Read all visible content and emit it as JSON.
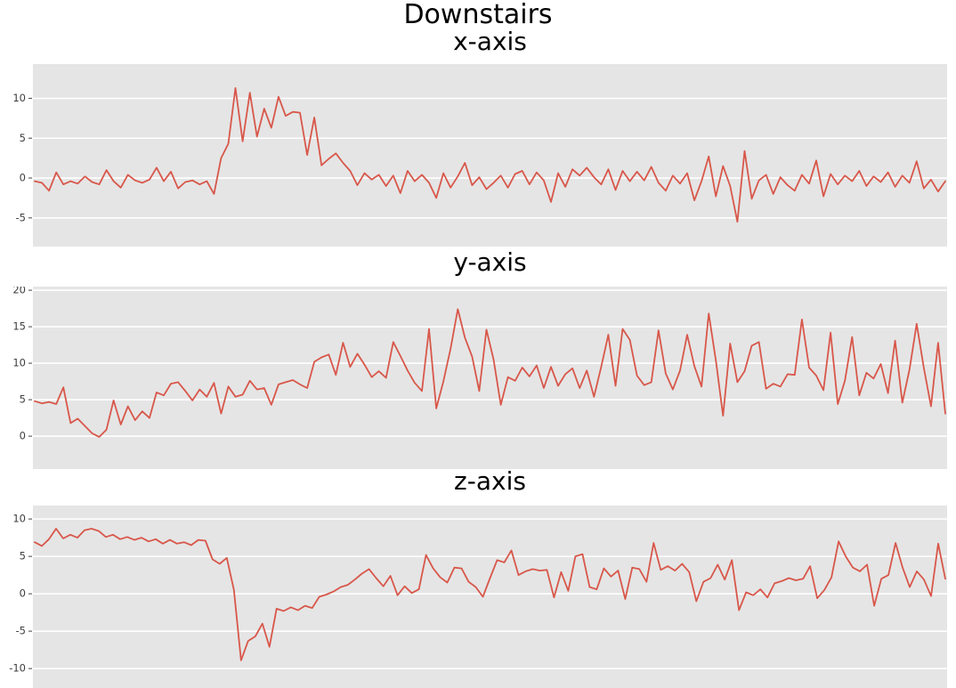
{
  "figure": {
    "title": "Downstairs",
    "background": "#ffffff"
  },
  "style": {
    "axes_background": "#e5e5e5",
    "grid_color": "#ffffff",
    "line_color": "#d8574a",
    "tick_mark_color": "#555555",
    "tick_label_color": "#3d3d3d",
    "title_color": "#000000"
  },
  "chart_data": [
    {
      "type": "line",
      "title": "x-axis",
      "xlabel": "",
      "ylabel": "",
      "legend": null,
      "grid": "horizontal",
      "xticks": [],
      "yticks": [
        10,
        5,
        0,
        -5
      ],
      "ylim": [
        -8.6,
        14.3
      ],
      "values": [
        -0.4,
        -0.6,
        -1.6,
        0.7,
        -0.8,
        -0.4,
        -0.7,
        0.2,
        -0.5,
        -0.8,
        1.0,
        -0.4,
        -1.2,
        0.4,
        -0.3,
        -0.6,
        -0.2,
        1.3,
        -0.4,
        0.8,
        -1.3,
        -0.5,
        -0.3,
        -0.8,
        -0.4,
        -2.0,
        2.5,
        4.3,
        11.3,
        4.6,
        10.7,
        5.2,
        8.7,
        6.3,
        10.2,
        7.8,
        8.3,
        8.2,
        2.9,
        7.6,
        1.6,
        2.4,
        3.1,
        1.9,
        0.9,
        -0.9,
        0.6,
        -0.2,
        0.4,
        -1.0,
        0.3,
        -1.9,
        0.9,
        -0.4,
        0.4,
        -0.6,
        -2.5,
        0.6,
        -1.2,
        0.2,
        1.9,
        -0.9,
        0.1,
        -1.4,
        -0.6,
        0.3,
        -1.2,
        0.5,
        0.9,
        -0.8,
        0.7,
        -0.3,
        -3.0,
        0.6,
        -1.1,
        1.1,
        0.3,
        1.3,
        0.1,
        -0.8,
        1.1,
        -1.5,
        0.9,
        -0.4,
        0.8,
        -0.3,
        1.4,
        -0.6,
        -1.6,
        0.3,
        -0.7,
        0.6,
        -2.8,
        -0.4,
        2.7,
        -2.3,
        1.5,
        -1.0,
        -5.5,
        3.4,
        -2.6,
        -0.3,
        0.4,
        -2.0,
        0.1,
        -0.9,
        -1.6,
        0.4,
        -0.7,
        2.2,
        -2.3,
        0.5,
        -0.8,
        0.3,
        -0.4,
        0.9,
        -1.0,
        0.2,
        -0.5,
        0.7,
        -1.1,
        0.3,
        -0.6,
        2.1,
        -1.3,
        -0.2,
        -1.7,
        -0.4
      ]
    },
    {
      "type": "line",
      "title": "y-axis",
      "xlabel": "",
      "ylabel": "",
      "legend": null,
      "grid": "horizontal",
      "xticks": [],
      "yticks": [
        20,
        15,
        10,
        5,
        0
      ],
      "ylim": [
        -4.5,
        20.5
      ],
      "values": [
        4.8,
        4.5,
        4.7,
        4.4,
        6.7,
        1.8,
        2.4,
        1.4,
        0.4,
        -0.1,
        0.9,
        4.9,
        1.6,
        4.1,
        2.2,
        3.4,
        2.5,
        6.0,
        5.6,
        7.2,
        7.4,
        6.2,
        4.9,
        6.4,
        5.4,
        7.3,
        3.1,
        6.8,
        5.4,
        5.7,
        7.6,
        6.4,
        6.6,
        4.3,
        7.1,
        7.4,
        7.7,
        7.1,
        6.6,
        10.2,
        10.8,
        11.2,
        8.4,
        12.8,
        9.5,
        11.3,
        9.8,
        8.1,
        8.9,
        8.0,
        12.9,
        11.0,
        9.0,
        7.3,
        6.2,
        14.7,
        3.8,
        7.5,
        12.0,
        17.4,
        13.5,
        10.9,
        6.2,
        14.6,
        10.5,
        4.3,
        8.1,
        7.6,
        9.4,
        8.2,
        9.7,
        6.6,
        9.5,
        6.9,
        8.5,
        9.3,
        6.6,
        9.0,
        5.4,
        9.5,
        13.9,
        6.9,
        14.7,
        13.2,
        8.3,
        7.0,
        7.4,
        14.5,
        8.6,
        6.4,
        9.0,
        13.9,
        9.6,
        6.8,
        16.8,
        10.4,
        2.8,
        12.7,
        7.4,
        8.9,
        12.4,
        12.9,
        6.5,
        7.2,
        6.8,
        8.5,
        8.4,
        16.0,
        9.4,
        8.3,
        6.3,
        14.2,
        4.4,
        7.6,
        13.6,
        5.6,
        8.7,
        7.9,
        9.9,
        5.9,
        13.1,
        4.6,
        9.1,
        15.4,
        9.4,
        4.1,
        12.8,
        3.1
      ]
    },
    {
      "type": "line",
      "title": "z-axis",
      "xlabel": "",
      "ylabel": "",
      "legend": null,
      "grid": "horizontal",
      "xticks": [],
      "yticks": [
        10,
        5,
        0,
        -5,
        -10
      ],
      "ylim": [
        -12.6,
        11.8
      ],
      "values": [
        6.9,
        6.4,
        7.3,
        8.7,
        7.4,
        7.9,
        7.5,
        8.5,
        8.7,
        8.4,
        7.6,
        7.9,
        7.3,
        7.6,
        7.2,
        7.5,
        7.0,
        7.3,
        6.7,
        7.2,
        6.7,
        6.9,
        6.5,
        7.2,
        7.1,
        4.6,
        4.0,
        4.8,
        0.5,
        -8.9,
        -6.3,
        -5.7,
        -4.0,
        -7.1,
        -2.0,
        -2.3,
        -1.8,
        -2.2,
        -1.6,
        -1.9,
        -0.4,
        -0.1,
        0.3,
        0.9,
        1.2,
        1.9,
        2.7,
        3.3,
        2.1,
        1.0,
        2.4,
        -0.2,
        1.0,
        0.1,
        0.6,
        5.2,
        3.4,
        2.2,
        1.5,
        3.5,
        3.4,
        1.6,
        0.9,
        -0.4,
        2.1,
        4.5,
        4.2,
        5.8,
        2.5,
        3.0,
        3.3,
        3.1,
        3.2,
        -0.5,
        2.9,
        0.4,
        5.0,
        5.3,
        0.9,
        0.6,
        3.4,
        2.3,
        3.1,
        -0.7,
        3.5,
        3.3,
        1.6,
        6.8,
        3.2,
        3.7,
        3.1,
        4.0,
        2.9,
        -1.0,
        1.6,
        2.1,
        3.9,
        1.9,
        4.5,
        -2.2,
        0.2,
        -0.2,
        0.6,
        -0.5,
        1.4,
        1.7,
        2.1,
        1.8,
        2.0,
        3.7,
        -0.6,
        0.5,
        2.2,
        7.0,
        5.0,
        3.5,
        3.0,
        3.9,
        -1.6,
        2.0,
        2.5,
        6.8,
        3.5,
        0.9,
        3.0,
        1.9,
        -0.3,
        6.7,
        2.0
      ]
    }
  ]
}
